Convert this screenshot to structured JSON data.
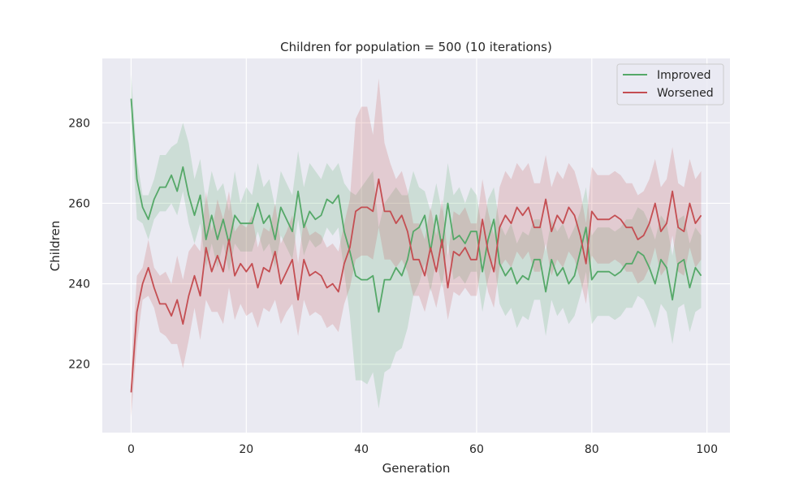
{
  "chart_data": {
    "type": "line",
    "title": "Children for population = 500 (10 iterations)",
    "xlabel": "Generation",
    "ylabel": "Children",
    "xlim": [
      -5,
      104
    ],
    "ylim": [
      203,
      296
    ],
    "xticks": [
      0,
      20,
      40,
      60,
      80,
      100
    ],
    "yticks": [
      220,
      240,
      260,
      280
    ],
    "grid": true,
    "legend_position": "top-right",
    "background": "#eaeaf2",
    "series": [
      {
        "name": "Improved",
        "color": "#55a868",
        "x": [
          0,
          1,
          2,
          3,
          4,
          5,
          6,
          7,
          8,
          9,
          10,
          11,
          12,
          13,
          14,
          15,
          16,
          17,
          18,
          19,
          20,
          21,
          22,
          23,
          24,
          25,
          26,
          27,
          28,
          29,
          30,
          31,
          32,
          33,
          34,
          35,
          36,
          37,
          38,
          39,
          40,
          41,
          42,
          43,
          44,
          45,
          46,
          47,
          48,
          49,
          50,
          51,
          52,
          53,
          54,
          55,
          56,
          57,
          58,
          59,
          60,
          61,
          62,
          63,
          64,
          65,
          66,
          67,
          68,
          69,
          70,
          71,
          72,
          73,
          74,
          75,
          76,
          77,
          78,
          79,
          80,
          81,
          82,
          83,
          84,
          85,
          86,
          87,
          88,
          89,
          90,
          91,
          92,
          93,
          94,
          95,
          96,
          97,
          98,
          99
        ],
        "values": [
          286,
          266,
          259,
          256,
          261,
          264,
          264,
          267,
          263,
          269,
          262,
          257,
          262,
          251,
          257,
          251,
          256,
          250,
          257,
          255,
          255,
          255,
          260,
          255,
          257,
          251,
          259,
          256,
          253,
          263,
          254,
          258,
          256,
          257,
          261,
          260,
          262,
          253,
          248,
          242,
          241,
          241,
          242,
          233,
          241,
          241,
          244,
          242,
          246,
          253,
          254,
          257,
          248,
          257,
          249,
          260,
          251,
          252,
          250,
          253,
          253,
          243,
          251,
          256,
          245,
          242,
          244,
          240,
          242,
          241,
          246,
          246,
          238,
          246,
          242,
          244,
          240,
          242,
          248,
          254,
          241,
          243,
          243,
          243,
          242,
          243,
          245,
          245,
          248,
          247,
          244,
          240,
          246,
          244,
          236,
          245,
          246,
          239,
          244,
          242
        ],
        "lower": [
          280,
          256,
          255,
          251,
          256,
          258,
          258,
          260,
          257,
          263,
          255,
          250,
          255,
          244,
          250,
          244,
          250,
          243,
          250,
          248,
          248,
          248,
          253,
          248,
          250,
          244,
          252,
          249,
          246,
          256,
          247,
          251,
          249,
          250,
          254,
          252,
          254,
          243,
          232,
          216,
          216,
          215,
          218,
          209,
          218,
          219,
          223,
          224,
          229,
          237,
          240,
          245,
          238,
          246,
          239,
          250,
          241,
          242,
          240,
          243,
          243,
          233,
          241,
          246,
          235,
          232,
          234,
          229,
          232,
          231,
          236,
          236,
          227,
          236,
          232,
          234,
          230,
          232,
          237,
          243,
          230,
          232,
          232,
          232,
          231,
          232,
          234,
          234,
          237,
          236,
          233,
          229,
          235,
          233,
          225,
          234,
          235,
          228,
          233,
          234
        ],
        "upper": [
          292,
          271,
          262,
          262,
          266,
          272,
          272,
          274,
          275,
          280,
          275,
          266,
          271,
          260,
          268,
          263,
          265,
          258,
          268,
          260,
          264,
          262,
          270,
          264,
          266,
          259,
          268,
          265,
          262,
          273,
          264,
          270,
          268,
          266,
          270,
          268,
          270,
          265,
          263,
          262,
          264,
          266,
          268,
          254,
          260,
          262,
          264,
          262,
          262,
          268,
          264,
          263,
          258,
          265,
          258,
          270,
          262,
          264,
          260,
          264,
          262,
          253,
          261,
          264,
          255,
          252,
          255,
          250,
          253,
          252,
          256,
          256,
          248,
          256,
          253,
          255,
          251,
          254,
          258,
          264,
          252,
          254,
          254,
          254,
          253,
          254,
          256,
          256,
          259,
          258,
          255,
          251,
          257,
          255,
          247,
          256,
          257,
          250,
          254,
          252
        ]
      },
      {
        "name": "Worsened",
        "color": "#c44e52",
        "x": [
          0,
          1,
          2,
          3,
          4,
          5,
          6,
          7,
          8,
          9,
          10,
          11,
          12,
          13,
          14,
          15,
          16,
          17,
          18,
          19,
          20,
          21,
          22,
          23,
          24,
          25,
          26,
          27,
          28,
          29,
          30,
          31,
          32,
          33,
          34,
          35,
          36,
          37,
          38,
          39,
          40,
          41,
          42,
          43,
          44,
          45,
          46,
          47,
          48,
          49,
          50,
          51,
          52,
          53,
          54,
          55,
          56,
          57,
          58,
          59,
          60,
          61,
          62,
          63,
          64,
          65,
          66,
          67,
          68,
          69,
          70,
          71,
          72,
          73,
          74,
          75,
          76,
          77,
          78,
          79,
          80,
          81,
          82,
          83,
          84,
          85,
          86,
          87,
          88,
          89,
          90,
          91,
          92,
          93,
          94,
          95,
          96,
          97,
          98,
          99
        ],
        "values": [
          213,
          233,
          240,
          244,
          239,
          235,
          235,
          232,
          236,
          230,
          237,
          242,
          237,
          249,
          243,
          247,
          243,
          251,
          242,
          245,
          243,
          245,
          239,
          244,
          243,
          248,
          240,
          243,
          246,
          236,
          246,
          242,
          243,
          242,
          239,
          240,
          238,
          245,
          249,
          258,
          259,
          259,
          258,
          266,
          258,
          258,
          255,
          257,
          253,
          246,
          246,
          242,
          249,
          243,
          251,
          239,
          248,
          247,
          249,
          246,
          246,
          256,
          248,
          243,
          254,
          257,
          255,
          259,
          257,
          259,
          254,
          254,
          261,
          253,
          257,
          255,
          259,
          257,
          252,
          245,
          258,
          256,
          256,
          256,
          257,
          256,
          254,
          254,
          251,
          252,
          255,
          260,
          253,
          255,
          263,
          254,
          253,
          260,
          255,
          257
        ],
        "lower": [
          207,
          225,
          236,
          237,
          234,
          228,
          227,
          225,
          225,
          219,
          226,
          234,
          226,
          236,
          233,
          233,
          230,
          239,
          231,
          235,
          232,
          233,
          229,
          234,
          233,
          236,
          230,
          233,
          235,
          227,
          236,
          232,
          233,
          232,
          229,
          230,
          228,
          235,
          239,
          246,
          247,
          247,
          246,
          254,
          246,
          246,
          244,
          246,
          243,
          237,
          237,
          233,
          239,
          234,
          241,
          231,
          238,
          237,
          239,
          237,
          237,
          246,
          238,
          234,
          244,
          246,
          244,
          248,
          246,
          248,
          243,
          243,
          250,
          242,
          246,
          244,
          248,
          246,
          241,
          235,
          247,
          245,
          245,
          245,
          246,
          245,
          243,
          243,
          240,
          241,
          244,
          249,
          242,
          244,
          252,
          243,
          242,
          249,
          244,
          246
        ],
        "upper": [
          219,
          242,
          244,
          251,
          244,
          242,
          243,
          240,
          247,
          241,
          248,
          250,
          248,
          263,
          253,
          261,
          256,
          263,
          253,
          255,
          254,
          257,
          249,
          254,
          253,
          260,
          250,
          253,
          257,
          245,
          256,
          252,
          253,
          252,
          249,
          250,
          248,
          255,
          261,
          281,
          284,
          284,
          277,
          291,
          275,
          270,
          266,
          268,
          263,
          255,
          255,
          251,
          259,
          252,
          261,
          247,
          258,
          257,
          259,
          255,
          255,
          266,
          258,
          252,
          264,
          268,
          266,
          270,
          268,
          270,
          265,
          265,
          272,
          264,
          268,
          266,
          270,
          268,
          263,
          255,
          269,
          267,
          267,
          267,
          268,
          267,
          265,
          265,
          262,
          263,
          266,
          271,
          264,
          266,
          274,
          265,
          264,
          271,
          266,
          268
        ]
      }
    ]
  }
}
